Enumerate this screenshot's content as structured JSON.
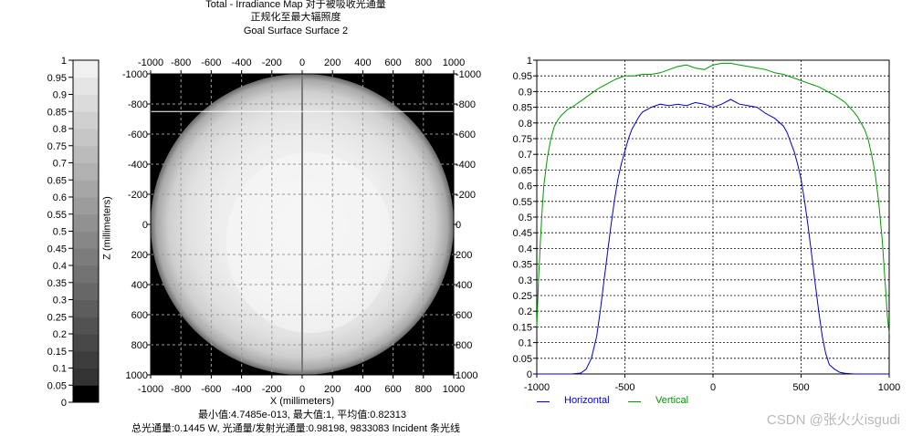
{
  "header": {
    "title": "Total - Irradiance Map 对于被吸收光通量",
    "subtitle": "正规化至最大辐照度",
    "surface": "Goal Surface Surface 2"
  },
  "footer": {
    "stats": "最小值:4.7485e-013, 最大值:1, 平均值:0.82313",
    "flux": "总光通量:0.1445 W, 光通量/发射光通量:0.98198, 9833083 Incident 条光线"
  },
  "watermark": "CSDN @张火火isgudi",
  "chart_data": [
    {
      "type": "colorbar",
      "ticks": [
        "0",
        "0.05",
        "0.1",
        "0.15",
        "0.2",
        "0.25",
        "0.3",
        "0.35",
        "0.4",
        "0.45",
        "0.5",
        "0.55",
        "0.6",
        "0.65",
        "0.7",
        "0.75",
        "0.8",
        "0.85",
        "0.9",
        "0.95",
        "1"
      ],
      "ylim": [
        0,
        1
      ]
    },
    {
      "type": "heatmap",
      "xlabel": "X (millimeters)",
      "ylabel": "Z (millimeters)",
      "xlim": [
        -1000,
        1000
      ],
      "ylim": [
        -1000,
        1000
      ],
      "xticks": [
        "-1000",
        "-800",
        "-600",
        "-400",
        "-200",
        "0",
        "200",
        "400",
        "600",
        "800",
        "1000"
      ],
      "yticks": [
        "-1000",
        "-800",
        "-600",
        "-400",
        "-200",
        "0",
        "200",
        "400",
        "600",
        "800",
        "1000"
      ],
      "circle_radius": 1000,
      "grid": true,
      "colors": {
        "background": "#000000",
        "grid": "#9a9a9a",
        "center_line": "#7a7a7a"
      }
    },
    {
      "type": "line",
      "xlim": [
        -1000,
        1000
      ],
      "ylim": [
        0,
        1
      ],
      "xticks": [
        "-1000",
        "-500",
        "0",
        "500",
        "1000"
      ],
      "yticks": [
        "0",
        "0.05",
        "0.1",
        "0.15",
        "0.2",
        "0.25",
        "0.3",
        "0.35",
        "0.4",
        "0.45",
        "0.5",
        "0.55",
        "0.6",
        "0.65",
        "0.7",
        "0.75",
        "0.8",
        "0.85",
        "0.9",
        "0.95",
        "1"
      ],
      "grid": true,
      "legend_position": "bottom",
      "series": [
        {
          "name": "Horizontal",
          "color": "#0000cc",
          "x": [
            -1000,
            -800,
            -750,
            -720,
            -690,
            -660,
            -640,
            -620,
            -600,
            -580,
            -560,
            -540,
            -520,
            -500,
            -480,
            -460,
            -440,
            -420,
            -400,
            -350,
            -300,
            -250,
            -200,
            -150,
            -100,
            -50,
            0,
            50,
            100,
            150,
            200,
            250,
            300,
            350,
            400,
            420,
            440,
            460,
            480,
            500,
            520,
            540,
            560,
            580,
            600,
            620,
            640,
            660,
            690,
            720,
            750,
            800,
            1000
          ],
          "y": [
            0,
            0,
            0.003,
            0.015,
            0.05,
            0.12,
            0.2,
            0.29,
            0.38,
            0.47,
            0.55,
            0.62,
            0.67,
            0.71,
            0.75,
            0.78,
            0.8,
            0.82,
            0.835,
            0.85,
            0.86,
            0.855,
            0.86,
            0.855,
            0.865,
            0.86,
            0.85,
            0.86,
            0.875,
            0.86,
            0.855,
            0.85,
            0.83,
            0.815,
            0.79,
            0.77,
            0.74,
            0.71,
            0.67,
            0.62,
            0.55,
            0.47,
            0.38,
            0.29,
            0.2,
            0.12,
            0.065,
            0.03,
            0.015,
            0.005,
            0.002,
            0,
            0
          ]
        },
        {
          "name": "Vertical",
          "color": "#009900",
          "x": [
            -1000,
            -990,
            -980,
            -970,
            -960,
            -940,
            -920,
            -900,
            -880,
            -860,
            -840,
            -820,
            -800,
            -750,
            -700,
            -650,
            -600,
            -550,
            -500,
            -450,
            -400,
            -350,
            -300,
            -250,
            -200,
            -150,
            -100,
            -50,
            0,
            50,
            100,
            150,
            200,
            250,
            300,
            350,
            400,
            450,
            500,
            550,
            600,
            650,
            700,
            750,
            800,
            820,
            840,
            860,
            880,
            900,
            920,
            940,
            960,
            980,
            990,
            1000
          ],
          "y": [
            0.15,
            0.3,
            0.42,
            0.52,
            0.6,
            0.69,
            0.75,
            0.79,
            0.81,
            0.825,
            0.835,
            0.845,
            0.85,
            0.87,
            0.89,
            0.91,
            0.925,
            0.94,
            0.95,
            0.95,
            0.955,
            0.955,
            0.96,
            0.97,
            0.98,
            0.985,
            0.975,
            0.97,
            0.985,
            0.99,
            0.99,
            0.985,
            0.98,
            0.975,
            0.97,
            0.96,
            0.955,
            0.945,
            0.935,
            0.925,
            0.915,
            0.9,
            0.885,
            0.865,
            0.835,
            0.82,
            0.8,
            0.78,
            0.75,
            0.7,
            0.64,
            0.55,
            0.43,
            0.27,
            0.18,
            0.13
          ]
        }
      ]
    }
  ]
}
